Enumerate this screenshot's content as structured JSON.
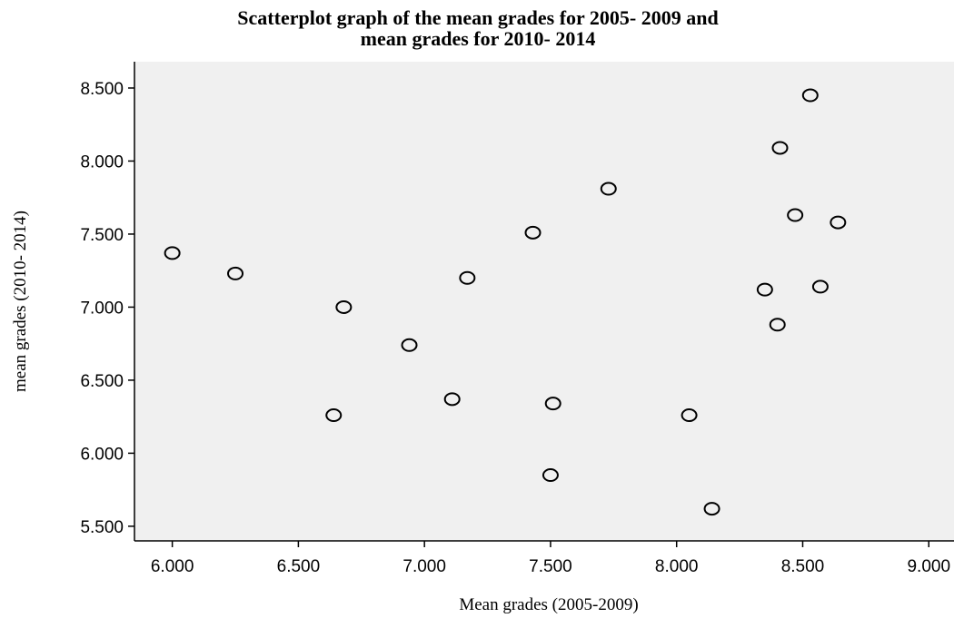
{
  "chart_data": {
    "type": "scatter",
    "title_line1": "Scatterplot graph of the mean grades for 2005- 2009 and",
    "title_line2": "mean grades for 2010- 2014",
    "xlabel": "Mean grades (2005-2009)",
    "ylabel": "mean grades (2010- 2014)",
    "xlim": [
      5.85,
      9.1
    ],
    "ylim": [
      5.4,
      8.68
    ],
    "x_ticks": [
      6.0,
      6.5,
      7.0,
      7.5,
      8.0,
      8.5,
      9.0
    ],
    "x_tick_labels": [
      "6.000",
      "6.500",
      "7.000",
      "7.500",
      "8.000",
      "8.500",
      "9.000"
    ],
    "y_ticks": [
      5.5,
      6.0,
      6.5,
      7.0,
      7.5,
      8.0,
      8.5
    ],
    "y_tick_labels": [
      "5.500",
      "6.000",
      "6.500",
      "7.000",
      "7.500",
      "8.000",
      "8.500"
    ],
    "grid": false,
    "plot_background": "#f0f0f0",
    "marker": "open-circle",
    "points": [
      {
        "x": 6.0,
        "y": 7.37
      },
      {
        "x": 6.25,
        "y": 7.23
      },
      {
        "x": 6.64,
        "y": 6.26
      },
      {
        "x": 6.68,
        "y": 7.0
      },
      {
        "x": 6.94,
        "y": 6.74
      },
      {
        "x": 7.11,
        "y": 6.37
      },
      {
        "x": 7.17,
        "y": 7.2
      },
      {
        "x": 7.43,
        "y": 7.51
      },
      {
        "x": 7.5,
        "y": 5.85
      },
      {
        "x": 7.51,
        "y": 6.34
      },
      {
        "x": 7.73,
        "y": 7.81
      },
      {
        "x": 8.05,
        "y": 6.26
      },
      {
        "x": 8.14,
        "y": 5.62
      },
      {
        "x": 8.35,
        "y": 7.12
      },
      {
        "x": 8.4,
        "y": 6.88
      },
      {
        "x": 8.41,
        "y": 8.09
      },
      {
        "x": 8.47,
        "y": 7.63
      },
      {
        "x": 8.53,
        "y": 8.45
      },
      {
        "x": 8.57,
        "y": 7.14
      },
      {
        "x": 8.64,
        "y": 7.58
      }
    ]
  }
}
